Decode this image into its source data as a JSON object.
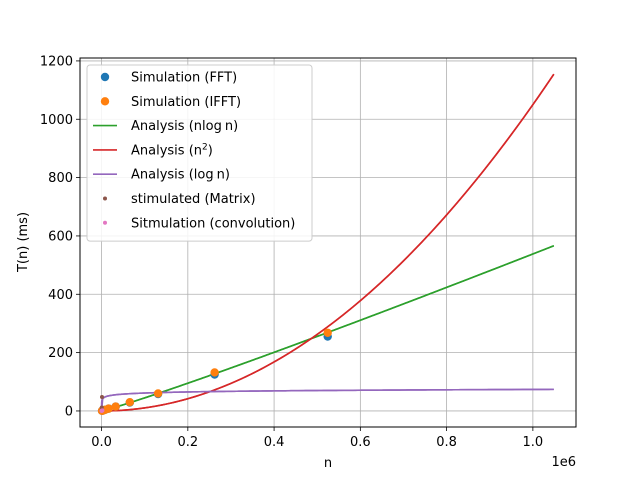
{
  "chart_data": {
    "type": "line",
    "xlabel": "n",
    "ylabel": "T(n) (ms)",
    "x_offset_label": "1e6",
    "xlim": [
      -50000,
      1100000
    ],
    "ylim": [
      -55,
      1210
    ],
    "x_ticks": [
      0,
      200000,
      400000,
      600000,
      800000,
      1000000
    ],
    "x_tick_labels": [
      "0.0",
      "0.2",
      "0.4",
      "0.6",
      "0.8",
      "1.0"
    ],
    "y_ticks": [
      0,
      200,
      400,
      600,
      800,
      1000,
      1200
    ],
    "y_tick_labels": [
      "0",
      "200",
      "400",
      "600",
      "800",
      "1000",
      "1200"
    ],
    "grid": true,
    "legend_position": "top-left",
    "series": [
      {
        "name": "Simulation (FFT)",
        "kind": "markers",
        "marker": "circle",
        "color": "#1f77b4",
        "x": [
          1024,
          2048,
          4096,
          8192,
          16384,
          32768,
          65536,
          131072,
          262144,
          524288
        ],
        "y": [
          0.5,
          1,
          2,
          4,
          8,
          15,
          29,
          58,
          125,
          255
        ]
      },
      {
        "name": "Simulation (IFFT)",
        "kind": "markers",
        "marker": "circle",
        "color": "#ff7f0e",
        "x": [
          1024,
          2048,
          4096,
          8192,
          16384,
          32768,
          65536,
          131072,
          262144,
          524288
        ],
        "y": [
          0.5,
          1,
          2,
          4,
          8,
          15,
          30,
          60,
          132,
          268
        ]
      },
      {
        "name": "Analysis (nlog n)",
        "label_main": "Analysis (nlog",
        "label_sub": "n)",
        "kind": "line",
        "color": "#2ca02c",
        "function": "nlogn",
        "coef": 2.7e-05
      },
      {
        "name": "Analysis (n2)",
        "label_main": "Analysis (n",
        "label_sup": "2",
        "label_end": ")",
        "kind": "line",
        "color": "#d62728",
        "function": "n2",
        "coef": 1.05e-09
      },
      {
        "name": "Analysis (log n)",
        "label_main": "Analysis (log",
        "label_sub": "n)",
        "kind": "line",
        "color": "#9467bd",
        "function": "logn",
        "coef": 3.7
      },
      {
        "name": "stimulated (Matrix)",
        "kind": "markers",
        "marker": "small-dot",
        "color": "#8c564b",
        "x": [
          128,
          256,
          512,
          1024
        ],
        "y": [
          1,
          3,
          12,
          48
        ]
      },
      {
        "name": "Sitmulation (convolution)",
        "kind": "markers",
        "marker": "small-dot",
        "color": "#e377c2",
        "x": [
          128,
          256,
          512,
          1024,
          2048
        ],
        "y": [
          0.1,
          0.2,
          0.5,
          1,
          2
        ]
      }
    ]
  }
}
